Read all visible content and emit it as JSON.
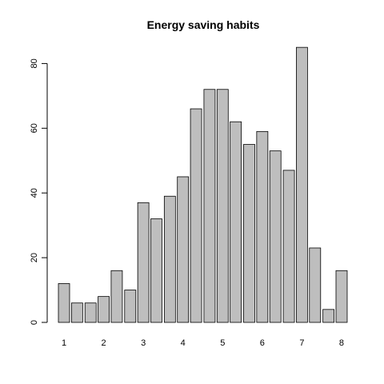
{
  "chart_data": {
    "type": "bar",
    "title": "Energy saving habits",
    "xlabel": "",
    "ylabel": "",
    "x_tick_labels": [
      "1",
      "2",
      "3",
      "4",
      "5",
      "6",
      "7",
      "8"
    ],
    "x_tick_values": [
      1,
      2,
      3,
      4,
      5,
      6,
      7,
      8
    ],
    "y_ticks": [
      0,
      20,
      40,
      60,
      80
    ],
    "ylim": [
      0,
      87
    ],
    "bars": [
      {
        "x": 1.0,
        "value": 12
      },
      {
        "x": 1.33,
        "value": 6
      },
      {
        "x": 1.67,
        "value": 6
      },
      {
        "x": 2.0,
        "value": 8
      },
      {
        "x": 2.33,
        "value": 16
      },
      {
        "x": 2.67,
        "value": 10
      },
      {
        "x": 3.0,
        "value": 37
      },
      {
        "x": 3.33,
        "value": 32
      },
      {
        "x": 3.67,
        "value": 39
      },
      {
        "x": 4.0,
        "value": 45
      },
      {
        "x": 4.33,
        "value": 66
      },
      {
        "x": 4.67,
        "value": 72
      },
      {
        "x": 5.0,
        "value": 72
      },
      {
        "x": 5.33,
        "value": 62
      },
      {
        "x": 5.67,
        "value": 55
      },
      {
        "x": 6.0,
        "value": 59
      },
      {
        "x": 6.33,
        "value": 53
      },
      {
        "x": 6.67,
        "value": 47
      },
      {
        "x": 7.0,
        "value": 85
      },
      {
        "x": 7.33,
        "value": 23
      },
      {
        "x": 7.67,
        "value": 4
      },
      {
        "x": 8.0,
        "value": 16
      }
    ],
    "bar_fill": "#bebebe",
    "bar_stroke": "#000000",
    "grid": false,
    "legend": "none"
  }
}
